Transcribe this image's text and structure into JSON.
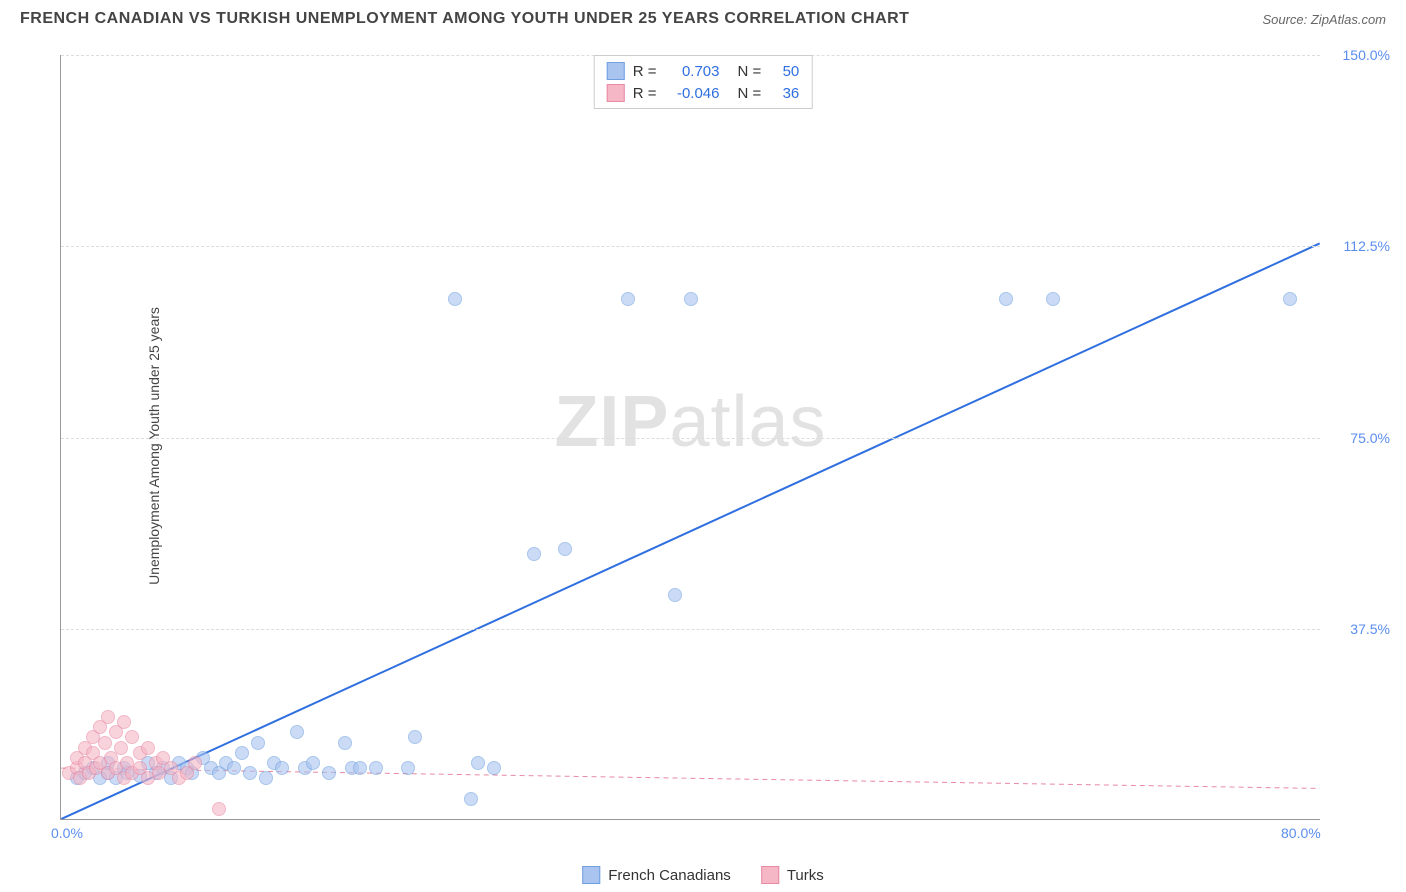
{
  "header": {
    "title": "FRENCH CANADIAN VS TURKISH UNEMPLOYMENT AMONG YOUTH UNDER 25 YEARS CORRELATION CHART",
    "source": "Source: ZipAtlas.com"
  },
  "chart": {
    "type": "scatter",
    "y_axis_label": "Unemployment Among Youth under 25 years",
    "xlim": [
      0,
      80
    ],
    "ylim": [
      0,
      150
    ],
    "x_ticks": [
      {
        "pos": 0,
        "label": "0.0%"
      },
      {
        "pos": 80,
        "label": "80.0%"
      }
    ],
    "y_ticks": [
      {
        "pos": 37.5,
        "label": "37.5%"
      },
      {
        "pos": 75.0,
        "label": "75.0%"
      },
      {
        "pos": 112.5,
        "label": "112.5%"
      },
      {
        "pos": 150.0,
        "label": "150.0%"
      }
    ],
    "tick_color": "#5b8def",
    "grid_color": "#dddddd",
    "axis_color": "#999999",
    "background_color": "#ffffff",
    "series": [
      {
        "name": "French Canadians",
        "color_fill": "#a9c4ef",
        "color_stroke": "#6f9fe0",
        "marker_size": 14,
        "marker_opacity": 0.6,
        "trend": {
          "x1": 0,
          "y1": 0,
          "x2": 80,
          "y2": 113,
          "stroke": "#2f6fe0",
          "width": 2,
          "dash": "none"
        },
        "points": [
          [
            1,
            8
          ],
          [
            1.5,
            9
          ],
          [
            2,
            10
          ],
          [
            2.5,
            8
          ],
          [
            3,
            9
          ],
          [
            3,
            11
          ],
          [
            3.5,
            8
          ],
          [
            4,
            10
          ],
          [
            4.2,
            9
          ],
          [
            5,
            8.5
          ],
          [
            5.5,
            11
          ],
          [
            6,
            9
          ],
          [
            6.5,
            10
          ],
          [
            7,
            8
          ],
          [
            7.5,
            11
          ],
          [
            8,
            10
          ],
          [
            8.3,
            9
          ],
          [
            9,
            12
          ],
          [
            9.5,
            10
          ],
          [
            10,
            9
          ],
          [
            10.5,
            11
          ],
          [
            11,
            10
          ],
          [
            11.5,
            13
          ],
          [
            12,
            9
          ],
          [
            12.5,
            15
          ],
          [
            13,
            8
          ],
          [
            13.5,
            11
          ],
          [
            14,
            10
          ],
          [
            15,
            17
          ],
          [
            15.5,
            10
          ],
          [
            16,
            11
          ],
          [
            17,
            9
          ],
          [
            18,
            15
          ],
          [
            18.5,
            10
          ],
          [
            19,
            10
          ],
          [
            20,
            10
          ],
          [
            22,
            10
          ],
          [
            22.5,
            16
          ],
          [
            26,
            4
          ],
          [
            26.5,
            11
          ],
          [
            27.5,
            10
          ],
          [
            30,
            52
          ],
          [
            32,
            53
          ],
          [
            39,
            44
          ],
          [
            25,
            102
          ],
          [
            36,
            102
          ],
          [
            40,
            102
          ],
          [
            60,
            102
          ],
          [
            63,
            102
          ],
          [
            78,
            102
          ]
        ]
      },
      {
        "name": "Turks",
        "color_fill": "#f5b6c6",
        "color_stroke": "#e88aa4",
        "marker_size": 14,
        "marker_opacity": 0.6,
        "trend": {
          "x1": 0,
          "y1": 10,
          "x2": 80,
          "y2": 6,
          "stroke": "#e88aa4",
          "width": 1,
          "dash": "5,4"
        },
        "points": [
          [
            0.5,
            9
          ],
          [
            1,
            10
          ],
          [
            1,
            12
          ],
          [
            1.2,
            8
          ],
          [
            1.5,
            11
          ],
          [
            1.5,
            14
          ],
          [
            1.8,
            9
          ],
          [
            2,
            13
          ],
          [
            2,
            16
          ],
          [
            2.2,
            10
          ],
          [
            2.5,
            18
          ],
          [
            2.5,
            11
          ],
          [
            2.8,
            15
          ],
          [
            3,
            9
          ],
          [
            3,
            20
          ],
          [
            3.2,
            12
          ],
          [
            3.5,
            10
          ],
          [
            3.5,
            17
          ],
          [
            3.8,
            14
          ],
          [
            4,
            8
          ],
          [
            4,
            19
          ],
          [
            4.2,
            11
          ],
          [
            4.5,
            16
          ],
          [
            4.5,
            9
          ],
          [
            5,
            13
          ],
          [
            5,
            10
          ],
          [
            5.5,
            14
          ],
          [
            5.5,
            8
          ],
          [
            6,
            11
          ],
          [
            6.2,
            9
          ],
          [
            6.5,
            12
          ],
          [
            7,
            10
          ],
          [
            7.5,
            8
          ],
          [
            8,
            9
          ],
          [
            8.5,
            11
          ],
          [
            10,
            2
          ]
        ]
      }
    ],
    "stats": [
      {
        "swatch_fill": "#a9c4ef",
        "swatch_stroke": "#6f9fe0",
        "r_label": "R =",
        "r_value": "0.703",
        "r_color": "#2f6fe0",
        "n_label": "N =",
        "n_value": "50",
        "n_color": "#2f6fe0"
      },
      {
        "swatch_fill": "#f5b6c6",
        "swatch_stroke": "#e88aa4",
        "r_label": "R =",
        "r_value": "-0.046",
        "r_color": "#2f6fe0",
        "n_label": "N =",
        "n_value": "36",
        "n_color": "#2f6fe0"
      }
    ],
    "legend": [
      {
        "swatch_fill": "#a9c4ef",
        "swatch_stroke": "#6f9fe0",
        "label": "French Canadians"
      },
      {
        "swatch_fill": "#f5b6c6",
        "swatch_stroke": "#e88aa4",
        "label": "Turks"
      }
    ],
    "watermark": {
      "bold": "ZIP",
      "rest": "atlas"
    }
  }
}
